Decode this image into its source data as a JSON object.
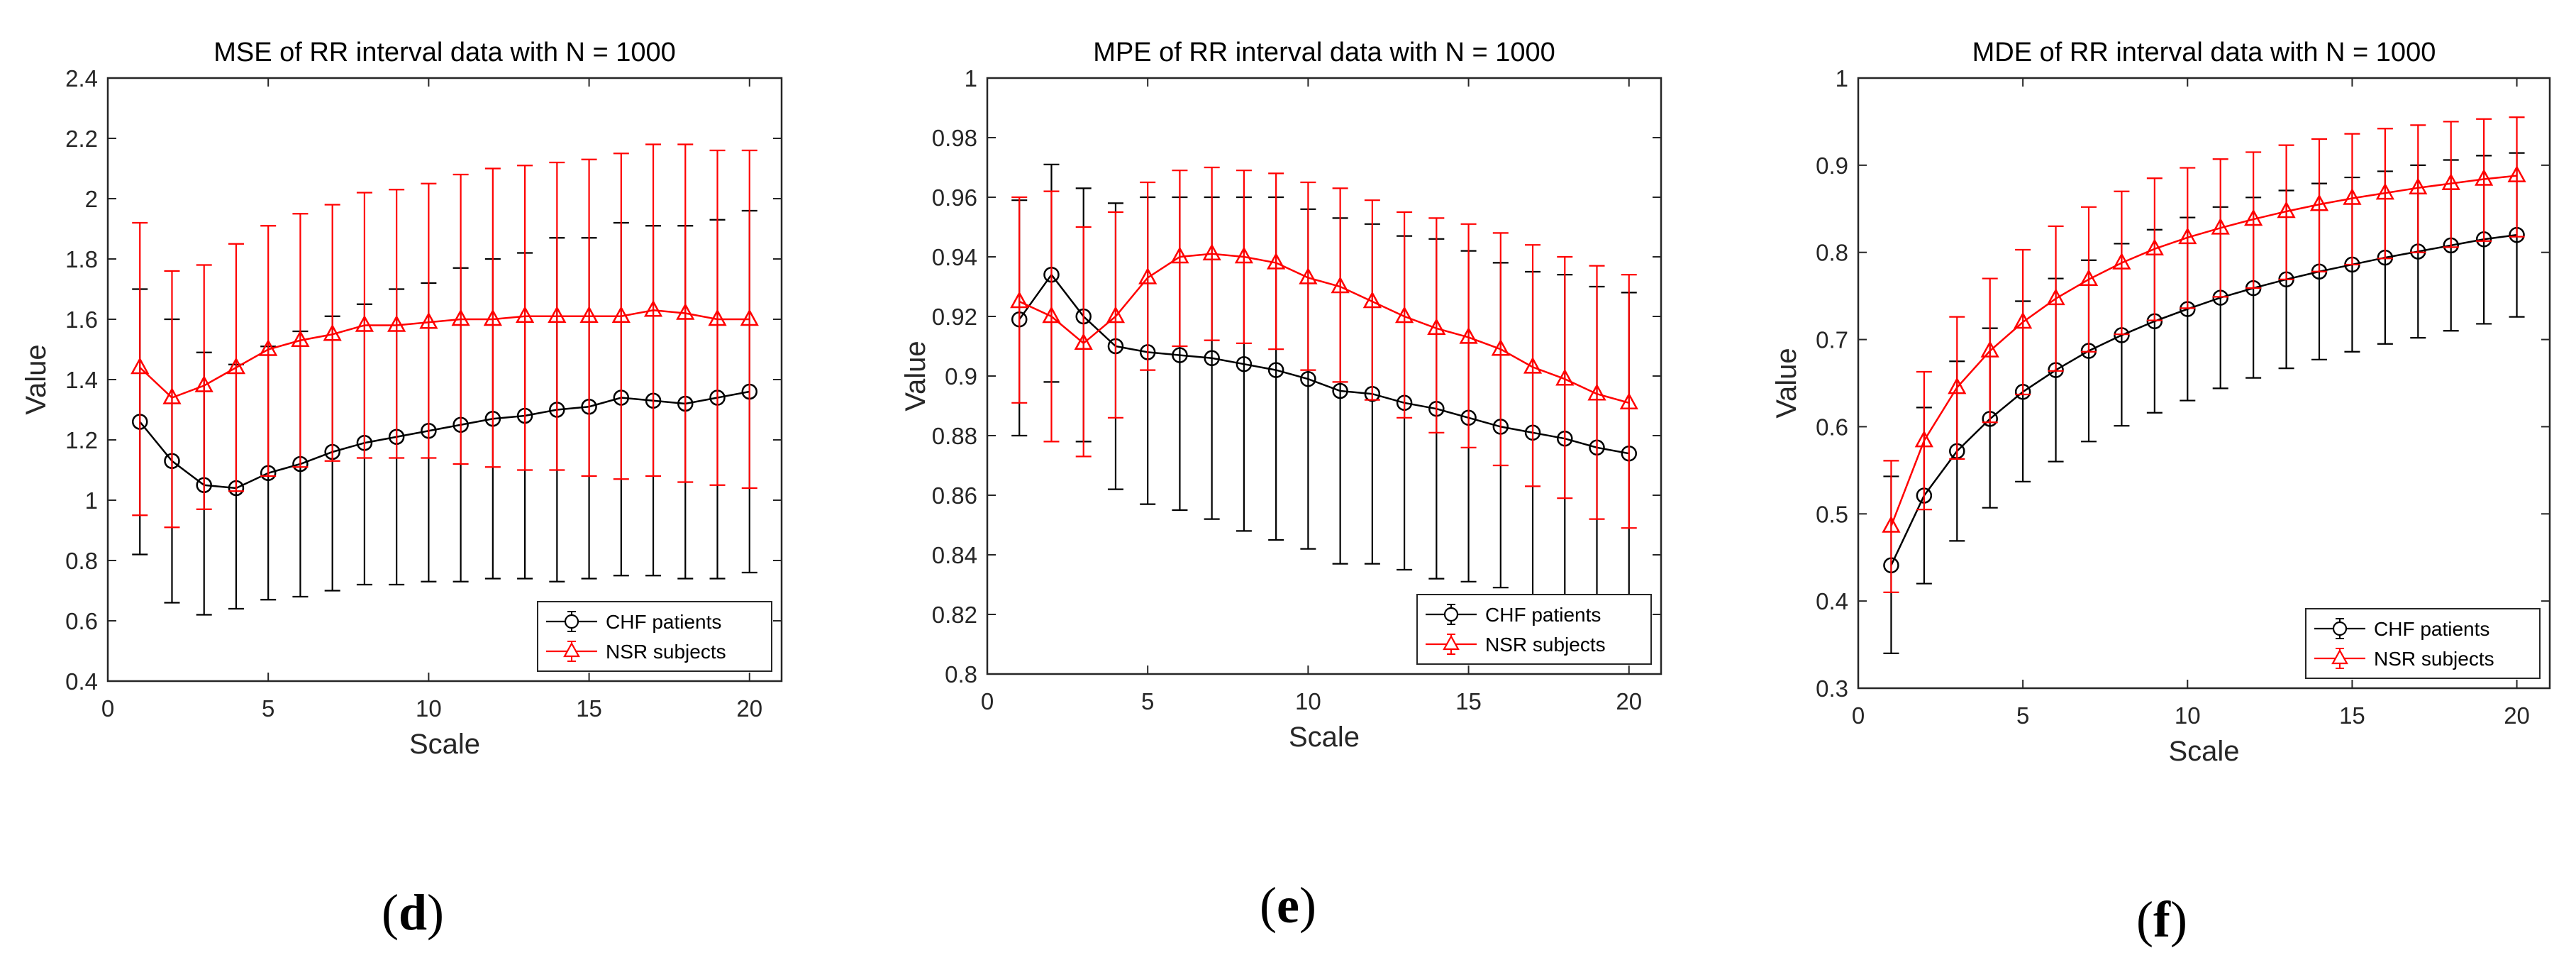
{
  "figure": {
    "panels": [
      {
        "label_open": "(",
        "label_letter": "d",
        "label_close": ")"
      },
      {
        "label_open": "(",
        "label_letter": "e",
        "label_close": ")"
      },
      {
        "label_open": "(",
        "label_letter": "f",
        "label_close": ")"
      }
    ]
  },
  "chart_data": [
    {
      "type": "line",
      "title": "MSE of RR interval data with N = 1000",
      "xlabel": "Scale",
      "ylabel": "Value",
      "xlim": [
        0,
        21
      ],
      "ylim": [
        0.4,
        2.4
      ],
      "xticks": [
        0,
        5,
        10,
        15,
        20
      ],
      "xtick_labels": [
        "0",
        "5",
        "10",
        "15",
        "20"
      ],
      "yticks": [
        0.4,
        0.6,
        0.8,
        1.0,
        1.2,
        1.4,
        1.6,
        1.8,
        2.0,
        2.2,
        2.4
      ],
      "ytick_labels": [
        "0.4",
        "0.6",
        "0.8",
        "1",
        "1.2",
        "1.4",
        "1.6",
        "1.8",
        "2",
        "2.2",
        "2.4"
      ],
      "legend_position": "bottom-right",
      "x": [
        1,
        2,
        3,
        4,
        5,
        6,
        7,
        8,
        9,
        10,
        11,
        12,
        13,
        14,
        15,
        16,
        17,
        18,
        19,
        20
      ],
      "series": [
        {
          "name": "CHF patients",
          "color": "#000000",
          "marker": "circle",
          "values": [
            1.26,
            1.13,
            1.05,
            1.04,
            1.09,
            1.12,
            1.16,
            1.19,
            1.21,
            1.23,
            1.25,
            1.27,
            1.28,
            1.3,
            1.31,
            1.34,
            1.33,
            1.32,
            1.34,
            1.36
          ],
          "err_low": [
            0.82,
            0.66,
            0.62,
            0.64,
            0.67,
            0.68,
            0.7,
            0.72,
            0.72,
            0.73,
            0.73,
            0.74,
            0.74,
            0.73,
            0.74,
            0.75,
            0.75,
            0.74,
            0.74,
            0.76
          ],
          "err_high": [
            1.7,
            1.6,
            1.49,
            1.45,
            1.51,
            1.56,
            1.61,
            1.65,
            1.7,
            1.72,
            1.77,
            1.8,
            1.82,
            1.87,
            1.87,
            1.92,
            1.91,
            1.91,
            1.93,
            1.96
          ]
        },
        {
          "name": "NSR subjects",
          "color": "#ff0000",
          "marker": "triangle",
          "values": [
            1.44,
            1.34,
            1.38,
            1.44,
            1.5,
            1.53,
            1.55,
            1.58,
            1.58,
            1.59,
            1.6,
            1.6,
            1.61,
            1.61,
            1.61,
            1.61,
            1.63,
            1.62,
            1.6,
            1.6
          ],
          "err_low": [
            0.95,
            0.91,
            0.97,
            1.03,
            1.08,
            1.11,
            1.13,
            1.14,
            1.14,
            1.14,
            1.12,
            1.11,
            1.1,
            1.1,
            1.08,
            1.07,
            1.08,
            1.06,
            1.05,
            1.04
          ],
          "err_high": [
            1.92,
            1.76,
            1.78,
            1.85,
            1.91,
            1.95,
            1.98,
            2.02,
            2.03,
            2.05,
            2.08,
            2.1,
            2.11,
            2.12,
            2.13,
            2.15,
            2.18,
            2.18,
            2.16,
            2.16
          ]
        }
      ]
    },
    {
      "type": "line",
      "title": "MPE of RR interval data with N = 1000",
      "xlabel": "Scale",
      "ylabel": "Value",
      "xlim": [
        0,
        21
      ],
      "ylim": [
        0.8,
        1.0
      ],
      "xticks": [
        0,
        5,
        10,
        15,
        20
      ],
      "xtick_labels": [
        "0",
        "5",
        "10",
        "15",
        "20"
      ],
      "yticks": [
        0.8,
        0.82,
        0.84,
        0.86,
        0.88,
        0.9,
        0.92,
        0.94,
        0.96,
        0.98,
        1.0
      ],
      "ytick_labels": [
        "0.8",
        "0.82",
        "0.84",
        "0.86",
        "0.88",
        "0.9",
        "0.92",
        "0.94",
        "0.96",
        "0.98",
        "1"
      ],
      "legend_position": "bottom-right",
      "x": [
        1,
        2,
        3,
        4,
        5,
        6,
        7,
        8,
        9,
        10,
        11,
        12,
        13,
        14,
        15,
        16,
        17,
        18,
        19,
        20
      ],
      "series": [
        {
          "name": "CHF patients",
          "color": "#000000",
          "marker": "circle",
          "values": [
            0.919,
            0.934,
            0.92,
            0.91,
            0.908,
            0.907,
            0.906,
            0.904,
            0.902,
            0.899,
            0.895,
            0.894,
            0.891,
            0.889,
            0.886,
            0.883,
            0.881,
            0.879,
            0.876,
            0.874
          ],
          "err_low": [
            0.88,
            0.898,
            0.878,
            0.862,
            0.857,
            0.855,
            0.852,
            0.848,
            0.845,
            0.842,
            0.837,
            0.837,
            0.835,
            0.832,
            0.831,
            0.829,
            0.825,
            0.822,
            0.823,
            0.822
          ],
          "err_high": [
            0.959,
            0.971,
            0.963,
            0.958,
            0.96,
            0.96,
            0.96,
            0.96,
            0.96,
            0.956,
            0.953,
            0.951,
            0.947,
            0.946,
            0.942,
            0.938,
            0.935,
            0.934,
            0.93,
            0.928
          ]
        },
        {
          "name": "NSR subjects",
          "color": "#ff0000",
          "marker": "triangle",
          "values": [
            0.925,
            0.92,
            0.911,
            0.92,
            0.933,
            0.94,
            0.941,
            0.94,
            0.938,
            0.933,
            0.93,
            0.925,
            0.92,
            0.916,
            0.913,
            0.909,
            0.903,
            0.899,
            0.894,
            0.891
          ],
          "err_low": [
            0.891,
            0.878,
            0.873,
            0.886,
            0.902,
            0.91,
            0.912,
            0.911,
            0.909,
            0.902,
            0.898,
            0.892,
            0.886,
            0.881,
            0.876,
            0.87,
            0.863,
            0.859,
            0.852,
            0.849
          ],
          "err_high": [
            0.96,
            0.962,
            0.95,
            0.955,
            0.965,
            0.969,
            0.97,
            0.969,
            0.968,
            0.965,
            0.963,
            0.959,
            0.955,
            0.953,
            0.951,
            0.948,
            0.944,
            0.94,
            0.937,
            0.934
          ]
        }
      ]
    },
    {
      "type": "line",
      "title": "MDE of RR interval data with N = 1000",
      "xlabel": "Scale",
      "ylabel": "Value",
      "xlim": [
        0,
        21
      ],
      "ylim": [
        0.3,
        1.0
      ],
      "xticks": [
        0,
        5,
        10,
        15,
        20
      ],
      "xtick_labels": [
        "0",
        "5",
        "10",
        "15",
        "20"
      ],
      "yticks": [
        0.3,
        0.4,
        0.5,
        0.6,
        0.7,
        0.8,
        0.9,
        1.0
      ],
      "ytick_labels": [
        "0.3",
        "0.4",
        "0.5",
        "0.6",
        "0.7",
        "0.8",
        "0.9",
        "1"
      ],
      "legend_position": "bottom-right",
      "x": [
        1,
        2,
        3,
        4,
        5,
        6,
        7,
        8,
        9,
        10,
        11,
        12,
        13,
        14,
        15,
        16,
        17,
        18,
        19,
        20
      ],
      "series": [
        {
          "name": "CHF patients",
          "color": "#000000",
          "marker": "circle",
          "values": [
            0.441,
            0.521,
            0.572,
            0.609,
            0.64,
            0.665,
            0.687,
            0.705,
            0.721,
            0.735,
            0.748,
            0.759,
            0.769,
            0.778,
            0.786,
            0.794,
            0.801,
            0.808,
            0.815,
            0.82
          ],
          "err_low": [
            0.34,
            0.42,
            0.469,
            0.507,
            0.537,
            0.56,
            0.583,
            0.601,
            0.616,
            0.63,
            0.644,
            0.656,
            0.667,
            0.677,
            0.686,
            0.695,
            0.702,
            0.71,
            0.718,
            0.726
          ],
          "err_high": [
            0.543,
            0.622,
            0.675,
            0.713,
            0.744,
            0.77,
            0.791,
            0.81,
            0.826,
            0.84,
            0.852,
            0.863,
            0.871,
            0.879,
            0.886,
            0.893,
            0.9,
            0.906,
            0.911,
            0.914
          ]
        },
        {
          "name": "NSR subjects",
          "color": "#ff0000",
          "marker": "triangle",
          "values": [
            0.486,
            0.584,
            0.645,
            0.687,
            0.72,
            0.747,
            0.769,
            0.788,
            0.804,
            0.817,
            0.828,
            0.838,
            0.847,
            0.855,
            0.862,
            0.868,
            0.874,
            0.879,
            0.884,
            0.888
          ],
          "err_low": [
            0.41,
            0.505,
            0.563,
            0.605,
            0.637,
            0.664,
            0.686,
            0.706,
            0.722,
            0.736,
            0.749,
            0.759,
            0.769,
            0.778,
            0.786,
            0.793,
            0.8,
            0.806,
            0.813,
            0.818
          ],
          "err_high": [
            0.561,
            0.663,
            0.726,
            0.77,
            0.803,
            0.83,
            0.852,
            0.87,
            0.885,
            0.897,
            0.907,
            0.915,
            0.923,
            0.93,
            0.936,
            0.942,
            0.946,
            0.95,
            0.953,
            0.955
          ]
        }
      ]
    }
  ]
}
